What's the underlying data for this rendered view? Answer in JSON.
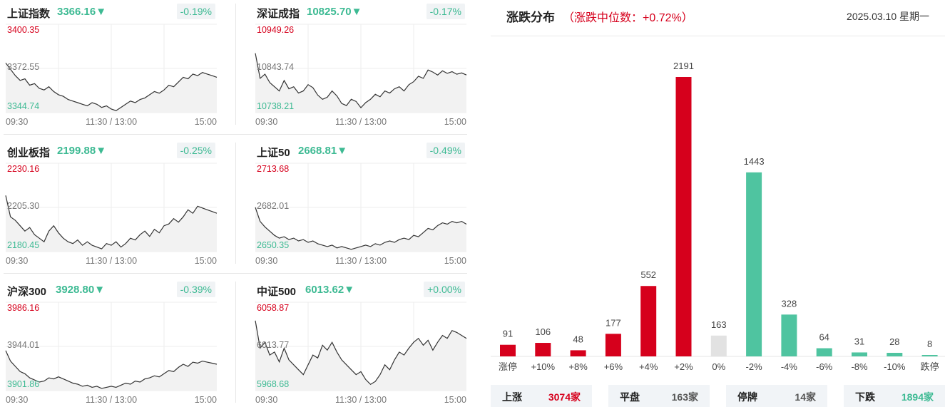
{
  "indices": [
    {
      "name": "上证指数",
      "value": "3366.16",
      "arrow": "▼",
      "change": "-0.19%",
      "max": "3400.35",
      "mid": "3372.55",
      "min": "3344.74",
      "times": [
        "09:30",
        "11:30 / 13:00",
        "15:00"
      ],
      "series": [
        3376,
        3372,
        3368,
        3365,
        3366,
        3362,
        3363,
        3360,
        3359,
        3361,
        3358,
        3356,
        3355,
        3353,
        3352,
        3351,
        3350,
        3349,
        3351,
        3350,
        3348,
        3349,
        3347,
        3346,
        3348,
        3350,
        3352,
        3351,
        3353,
        3354,
        3356,
        3358,
        3357,
        3359,
        3362,
        3361,
        3364,
        3367,
        3366,
        3369,
        3368,
        3370,
        3369,
        3368,
        3367
      ]
    },
    {
      "name": "深证成指",
      "value": "10825.70",
      "arrow": "▼",
      "change": "-0.17%",
      "max": "10949.26",
      "mid": "10843.74",
      "min": "10738.21",
      "times": [
        "09:30",
        "11:30 / 13:00",
        "15:00"
      ],
      "series": [
        10880,
        10820,
        10830,
        10810,
        10800,
        10790,
        10815,
        10795,
        10800,
        10785,
        10790,
        10805,
        10798,
        10780,
        10770,
        10775,
        10790,
        10778,
        10760,
        10755,
        10770,
        10765,
        10750,
        10762,
        10770,
        10782,
        10776,
        10790,
        10785,
        10795,
        10800,
        10790,
        10805,
        10812,
        10825,
        10820,
        10840,
        10835,
        10828,
        10838,
        10832,
        10836,
        10830,
        10833,
        10828
      ]
    },
    {
      "name": "创业板指",
      "value": "2199.88",
      "arrow": "▼",
      "change": "-0.25%",
      "max": "2230.16",
      "mid": "2205.30",
      "min": "2180.45",
      "times": [
        "09:30",
        "11:30 / 13:00",
        "15:00"
      ],
      "series": [
        2212,
        2200,
        2198,
        2195,
        2192,
        2194,
        2190,
        2188,
        2186,
        2192,
        2195,
        2191,
        2188,
        2186,
        2185,
        2187,
        2184,
        2186,
        2184,
        2183,
        2182,
        2185,
        2184,
        2186,
        2183,
        2185,
        2188,
        2187,
        2190,
        2192,
        2189,
        2193,
        2191,
        2195,
        2196,
        2199,
        2197,
        2200,
        2204,
        2202,
        2206,
        2205,
        2204,
        2203,
        2202
      ]
    },
    {
      "name": "上证50",
      "value": "2668.81",
      "arrow": "▼",
      "change": "-0.49%",
      "max": "2713.68",
      "mid": "2682.01",
      "min": "2650.35",
      "times": [
        "09:30",
        "11:30 / 13:00",
        "15:00"
      ],
      "series": [
        2682,
        2672,
        2668,
        2665,
        2662,
        2660,
        2661,
        2659,
        2660,
        2658,
        2659,
        2657,
        2658,
        2656,
        2655,
        2654,
        2655,
        2653,
        2654,
        2653,
        2652,
        2653,
        2654,
        2655,
        2654,
        2656,
        2655,
        2657,
        2658,
        2657,
        2659,
        2660,
        2659,
        2662,
        2661,
        2664,
        2667,
        2666,
        2669,
        2671,
        2670,
        2672,
        2671,
        2672,
        2670
      ]
    },
    {
      "name": "沪深300",
      "value": "3928.80",
      "arrow": "▼",
      "change": "-0.39%",
      "max": "3986.16",
      "mid": "3944.01",
      "min": "3901.86",
      "times": [
        "09:30",
        "11:30 / 13:00",
        "15:00"
      ],
      "series": [
        3940,
        3930,
        3925,
        3920,
        3918,
        3914,
        3912,
        3910,
        3911,
        3914,
        3913,
        3915,
        3913,
        3911,
        3909,
        3908,
        3906,
        3907,
        3905,
        3906,
        3904,
        3905,
        3906,
        3905,
        3907,
        3909,
        3908,
        3911,
        3910,
        3913,
        3914,
        3916,
        3915,
        3918,
        3921,
        3920,
        3924,
        3927,
        3925,
        3929,
        3928,
        3930,
        3929,
        3928,
        3927
      ]
    },
    {
      "name": "中证500",
      "value": "6013.62",
      "arrow": "▼",
      "change": "+0.00%",
      "max": "6058.87",
      "mid": "6013.77",
      "min": "5968.68",
      "times": [
        "09:30",
        "11:30 / 13:00",
        "15:00"
      ],
      "series": [
        6040,
        6012,
        6018,
        6005,
        6008,
        5998,
        6012,
        6000,
        5995,
        5990,
        5985,
        5995,
        6005,
        6002,
        6015,
        6010,
        6018,
        6008,
        6000,
        5995,
        5990,
        5985,
        5988,
        5980,
        5975,
        5978,
        5985,
        5995,
        5990,
        6000,
        6008,
        6005,
        6012,
        6018,
        6022,
        6015,
        6020,
        6010,
        6018,
        6025,
        6022,
        6030,
        6028,
        6025,
        6022
      ]
    }
  ],
  "distribution": {
    "title": "涨跌分布",
    "median": "（涨跌中位数：+0.72%）",
    "date": "2025.03.10 星期一",
    "colors": {
      "up": "#d6001c",
      "flat": "#e2e2e2",
      "down": "#4fc4a0"
    },
    "chart_data": {
      "type": "bar",
      "categories": [
        "涨停",
        "+10%",
        "+8%",
        "+6%",
        "+4%",
        "+2%",
        "0%",
        "-2%",
        "-4%",
        "-6%",
        "-8%",
        "-10%",
        "跌停"
      ],
      "values": [
        91,
        106,
        48,
        177,
        552,
        2191,
        163,
        1443,
        328,
        64,
        31,
        28,
        8
      ],
      "groups": [
        "up",
        "up",
        "up",
        "up",
        "up",
        "up",
        "flat",
        "down",
        "down",
        "down",
        "down",
        "down",
        "down"
      ]
    }
  },
  "summary": [
    {
      "label": "上涨",
      "value": "3074家",
      "color": "#d6001c"
    },
    {
      "label": "平盘",
      "value": "163家",
      "color": "#555555"
    },
    {
      "label": "停牌",
      "value": "14家",
      "color": "#555555"
    },
    {
      "label": "下跌",
      "value": "1894家",
      "color": "#3dba93"
    }
  ]
}
